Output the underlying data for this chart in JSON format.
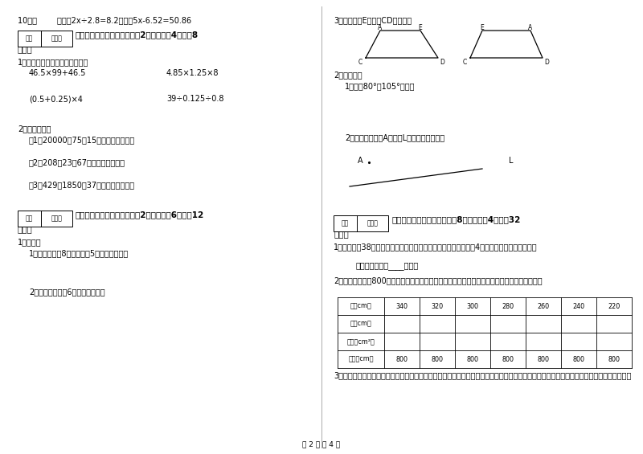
{
  "bg_color": "#ffffff",
  "footer": "第 2 页 共 4 页",
  "left": {
    "q10": "10．（        ）已知2x÷2.8=8.2，那么5x-6.52=50.86",
    "sec4_title": "四、看清题目，细心计算（共2小题，每题4分，共8",
    "sec4_sub": "分）。",
    "q1_intro": "1、脱式计算，能简算的要简算：",
    "q1a": "46.5×99+46.5",
    "q1b": "4.85×1.25×8",
    "q1c": "(0.5+0.25)×4",
    "q1d": "39÷0.125÷0.8",
    "q2_intro": "2、列式计算。",
    "q2a": "（1）20000兵75倍15的积，差是多少？",
    "q2b": "（2）208乘23与67的和，积是多少？",
    "q2c": "（3）429加1850与37的商，和是多少？",
    "sec5_title": "五、认真思考，综合能力（共2小题，每题6分，共12",
    "sec5_sub": "分）。",
    "sec5_q1": "1、作图。",
    "sec5_q1a": "1、画一个长为8厘米、宽为5厘米的长方形。",
    "sec5_q1b": "2、画一个边长是6厘米的正方形。"
  },
  "right": {
    "q3_label": "3、分别过点E画线段CD的垂线。",
    "op_label": "2、操作题：",
    "op_q1": "1、画出80°、105°的角。",
    "op_q2": "2、过直线外一点A画直线L的平行线和垂线。",
    "sec6_title": "六、应用知识，解决问题（共8小题，每题4分，共32",
    "sec6_sub": "分）。",
    "sec6_q1": "1、冬冬体重38千克，表弟体重是她的一半，而姐姐体重是表弟的4倍。姐姐体重是多少千克？",
    "sec6_q1ans": "答：姐姐体重是____千克。",
    "sec6_q2": "2、现在用一根长800米的绳子，围成长方形。请你根据表中的有关数据借助计算器把表填完整。",
    "table_row0": [
      "长（cm）",
      "340",
      "320",
      "300",
      "280",
      "260",
      "240",
      "220"
    ],
    "table_row1": [
      "宽（cm）",
      "",
      "",
      "",
      "",
      "",
      "",
      ""
    ],
    "table_row2": [
      "面积（cm²）",
      "",
      "",
      "",
      "",
      "",
      "",
      ""
    ],
    "table_row3": [
      "周长（cm）",
      "800",
      "800",
      "800",
      "800",
      "800",
      "800",
      "800"
    ],
    "sec6_q3": "3、下面是一张长方形纸对折两次后的图形，以折痕与长方形的交点为顶点，画一个梯形，你所画梯形的上底是多少？下底是多少？高是多少？"
  }
}
